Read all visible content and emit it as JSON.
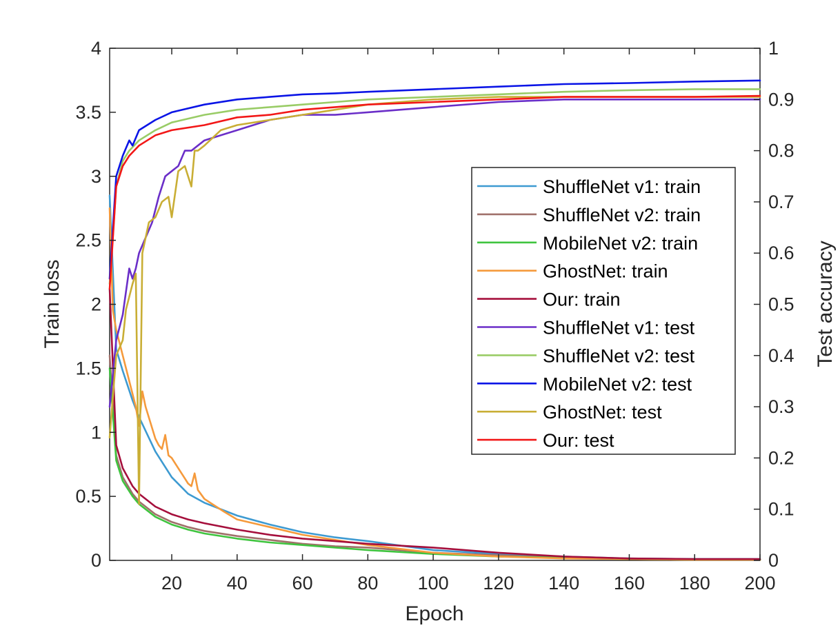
{
  "chart_data": {
    "type": "line",
    "xlabel": "Epoch",
    "ylabel_left": "Train loss",
    "ylabel_right": "Test accuracy",
    "xlim": [
      1,
      200
    ],
    "ylim_left": [
      0,
      4
    ],
    "ylim_right": [
      0,
      1
    ],
    "x_ticks": [
      20,
      40,
      60,
      80,
      100,
      120,
      140,
      160,
      180,
      200
    ],
    "y_ticks_left": [
      "0",
      "0.5",
      "1",
      "1.5",
      "2",
      "2.5",
      "3",
      "3.5",
      "4"
    ],
    "y_ticks_right": [
      "0",
      "0.1",
      "0.2",
      "0.3",
      "0.4",
      "0.5",
      "0.6",
      "0.7",
      "0.8",
      "0.9",
      "1"
    ],
    "grid": false,
    "legend_position": "right-center",
    "series": [
      {
        "name": "ShuffleNet v1: train",
        "axis": "left",
        "color": "#3d9ad1",
        "x": [
          1,
          3,
          5,
          8,
          10,
          15,
          20,
          25,
          30,
          40,
          50,
          60,
          70,
          80,
          100,
          120,
          140,
          160,
          180,
          200
        ],
        "y": [
          2.85,
          1.65,
          1.48,
          1.25,
          1.12,
          0.85,
          0.65,
          0.52,
          0.45,
          0.35,
          0.28,
          0.22,
          0.18,
          0.15,
          0.08,
          0.05,
          0.03,
          0.015,
          0.01,
          0.01
        ]
      },
      {
        "name": "ShuffleNet v2: train",
        "axis": "left",
        "color": "#a0706a",
        "x": [
          1,
          3,
          5,
          8,
          10,
          15,
          20,
          25,
          30,
          40,
          50,
          60,
          70,
          80,
          100,
          120,
          140,
          160,
          180,
          200
        ],
        "y": [
          1.6,
          0.82,
          0.65,
          0.52,
          0.46,
          0.36,
          0.3,
          0.26,
          0.23,
          0.19,
          0.16,
          0.13,
          0.11,
          0.1,
          0.06,
          0.04,
          0.02,
          0.01,
          0.005,
          0.005
        ]
      },
      {
        "name": "MobileNet v2: train",
        "axis": "left",
        "color": "#3fc43f",
        "x": [
          1,
          3,
          5,
          8,
          10,
          15,
          20,
          25,
          30,
          40,
          50,
          60,
          70,
          80,
          100,
          120,
          140,
          160,
          180,
          200
        ],
        "y": [
          1.5,
          0.78,
          0.62,
          0.5,
          0.44,
          0.34,
          0.28,
          0.24,
          0.21,
          0.17,
          0.14,
          0.12,
          0.1,
          0.08,
          0.05,
          0.03,
          0.02,
          0.01,
          0.005,
          0.005
        ]
      },
      {
        "name": "GhostNet: train",
        "axis": "left",
        "color": "#f59a3c",
        "x": [
          1,
          2,
          3,
          5,
          8,
          9,
          10,
          11,
          12,
          15,
          16,
          17,
          18,
          19,
          20,
          22,
          24,
          25,
          26,
          27,
          28,
          30,
          33,
          36,
          40,
          50,
          60,
          70,
          80,
          100,
          120,
          140,
          160,
          180,
          200
        ],
        "y": [
          2.75,
          1.95,
          1.8,
          1.6,
          1.3,
          1.2,
          1.05,
          1.32,
          1.2,
          0.95,
          0.9,
          0.87,
          0.98,
          0.82,
          0.8,
          0.72,
          0.64,
          0.6,
          0.58,
          0.68,
          0.55,
          0.48,
          0.43,
          0.38,
          0.32,
          0.26,
          0.2,
          0.16,
          0.12,
          0.06,
          0.03,
          0.015,
          0.01,
          0.005,
          0.005
        ]
      },
      {
        "name": "Our: train",
        "axis": "left",
        "color": "#a50f3c",
        "x": [
          1,
          3,
          5,
          8,
          10,
          15,
          20,
          25,
          30,
          40,
          50,
          60,
          70,
          80,
          100,
          120,
          140,
          160,
          180,
          200
        ],
        "y": [
          2.12,
          0.9,
          0.72,
          0.58,
          0.52,
          0.42,
          0.36,
          0.32,
          0.29,
          0.24,
          0.2,
          0.17,
          0.15,
          0.13,
          0.1,
          0.06,
          0.03,
          0.015,
          0.01,
          0.01
        ]
      },
      {
        "name": "ShuffleNet v1: test",
        "axis": "right",
        "color": "#6a2ec8",
        "x": [
          1,
          3,
          5,
          7,
          8,
          9,
          10,
          12,
          14,
          16,
          18,
          20,
          22,
          24,
          26,
          28,
          30,
          35,
          40,
          50,
          60,
          70,
          80,
          100,
          120,
          140,
          160,
          180,
          200
        ],
        "y": [
          0.3,
          0.43,
          0.48,
          0.57,
          0.55,
          0.57,
          0.6,
          0.63,
          0.66,
          0.71,
          0.75,
          0.76,
          0.77,
          0.8,
          0.8,
          0.81,
          0.82,
          0.83,
          0.84,
          0.86,
          0.87,
          0.87,
          0.875,
          0.885,
          0.895,
          0.9,
          0.9,
          0.9,
          0.9
        ]
      },
      {
        "name": "ShuffleNet v2: test",
        "axis": "right",
        "color": "#99cc66",
        "x": [
          1,
          3,
          5,
          7,
          10,
          15,
          20,
          30,
          40,
          50,
          60,
          70,
          80,
          100,
          120,
          140,
          160,
          180,
          200
        ],
        "y": [
          0.54,
          0.73,
          0.78,
          0.8,
          0.82,
          0.84,
          0.855,
          0.87,
          0.88,
          0.885,
          0.89,
          0.895,
          0.9,
          0.905,
          0.91,
          0.915,
          0.918,
          0.92,
          0.92
        ]
      },
      {
        "name": "MobileNet v2: test",
        "axis": "right",
        "color": "#0a14e6",
        "x": [
          1,
          3,
          5,
          7,
          8,
          10,
          15,
          20,
          30,
          40,
          50,
          60,
          70,
          80,
          100,
          120,
          140,
          160,
          180,
          200
        ],
        "y": [
          0.55,
          0.75,
          0.79,
          0.82,
          0.81,
          0.84,
          0.86,
          0.875,
          0.89,
          0.9,
          0.905,
          0.91,
          0.912,
          0.915,
          0.92,
          0.925,
          0.93,
          0.932,
          0.935,
          0.937
        ]
      },
      {
        "name": "GhostNet: test",
        "axis": "right",
        "color": "#c9ae35",
        "x": [
          1,
          3,
          5,
          6,
          8,
          9,
          10,
          11,
          13,
          15,
          17,
          19,
          20,
          22,
          24,
          26,
          27,
          28,
          30,
          35,
          40,
          50,
          60,
          70,
          80,
          100,
          120,
          140,
          160,
          180,
          200
        ],
        "y": [
          0.24,
          0.4,
          0.43,
          0.49,
          0.54,
          0.56,
          0.11,
          0.6,
          0.66,
          0.67,
          0.7,
          0.71,
          0.67,
          0.76,
          0.77,
          0.73,
          0.8,
          0.8,
          0.81,
          0.84,
          0.85,
          0.86,
          0.87,
          0.88,
          0.89,
          0.9,
          0.905,
          0.905,
          0.905,
          0.905,
          0.905
        ]
      },
      {
        "name": "Our: test",
        "axis": "right",
        "color": "#f21717",
        "x": [
          1,
          3,
          5,
          7,
          10,
          15,
          20,
          30,
          40,
          50,
          60,
          70,
          80,
          100,
          120,
          140,
          160,
          180,
          200
        ],
        "y": [
          0.53,
          0.73,
          0.77,
          0.79,
          0.81,
          0.83,
          0.84,
          0.85,
          0.865,
          0.87,
          0.88,
          0.885,
          0.89,
          0.895,
          0.9,
          0.905,
          0.905,
          0.905,
          0.907
        ]
      }
    ]
  }
}
